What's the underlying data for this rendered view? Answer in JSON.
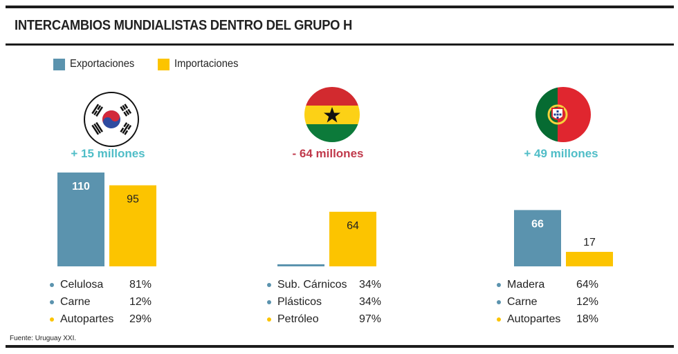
{
  "title": "INTERCAMBIOS MUNDIALISTAS DENTRO DEL GRUPO H",
  "legend": {
    "exports_label": "Exportaciones",
    "imports_label": "Importaciones"
  },
  "colors": {
    "exports": "#5b93ae",
    "imports": "#fcc400",
    "positive": "#4fbdc7",
    "negative": "#c0394b"
  },
  "source": "Fuente: Uruguay XXI.",
  "chart_data": {
    "type": "bar",
    "categories": [
      "Corea del Sur",
      "Ghana",
      "Portugal"
    ],
    "series": [
      {
        "name": "Exportaciones",
        "values": [
          110,
          0,
          66
        ]
      },
      {
        "name": "Importaciones",
        "values": [
          95,
          64,
          17
        ]
      }
    ],
    "value_labels": [
      {
        "exports": "110",
        "imports": "95"
      },
      {
        "exports": "",
        "imports": "64"
      },
      {
        "exports": "66",
        "imports": "17"
      }
    ],
    "ylim": [
      0,
      110
    ]
  },
  "countries": [
    {
      "flag": "south-korea-flag",
      "balance": "+ 15 millones",
      "balance_sign": "positive",
      "products": [
        {
          "name": "Celulosa",
          "pct": "81%",
          "type": "exports"
        },
        {
          "name": "Carne",
          "pct": "12%",
          "type": "exports"
        },
        {
          "name": "Autopartes",
          "pct": "29%",
          "type": "imports"
        }
      ]
    },
    {
      "flag": "ghana-flag",
      "balance": "- 64 millones",
      "balance_sign": "negative",
      "products": [
        {
          "name": "Sub. Cárnicos",
          "pct": "34%",
          "type": "exports"
        },
        {
          "name": "Plásticos",
          "pct": "34%",
          "type": "exports"
        },
        {
          "name": "Petróleo",
          "pct": "97%",
          "type": "imports"
        }
      ]
    },
    {
      "flag": "portugal-flag",
      "balance": "+ 49 millones",
      "balance_sign": "positive",
      "products": [
        {
          "name": "Madera",
          "pct": "64%",
          "type": "exports"
        },
        {
          "name": "Carne",
          "pct": "12%",
          "type": "exports"
        },
        {
          "name": "Autopartes",
          "pct": "18%",
          "type": "imports"
        }
      ]
    }
  ]
}
